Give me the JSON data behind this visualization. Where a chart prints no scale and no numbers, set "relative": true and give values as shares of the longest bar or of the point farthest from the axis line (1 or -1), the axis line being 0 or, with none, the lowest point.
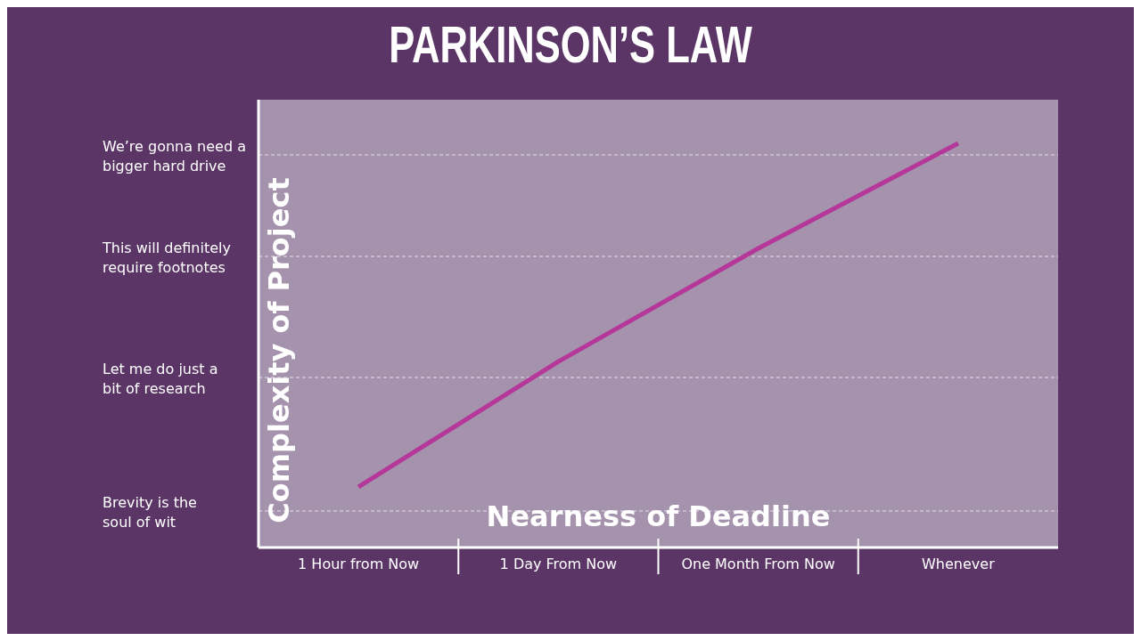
{
  "chart_data": {
    "type": "line",
    "title": "PARKINSON’S LAW",
    "xlabel": "Nearness of Deadline",
    "ylabel": "Complexity of Project",
    "relative": true,
    "categories": [
      "1 Hour from Now",
      "1 Day From Now",
      "One Month From Now",
      "Whenever"
    ],
    "series": [
      {
        "color": "#b5379a",
        "values": [
          0.15,
          0.46,
          0.74,
          1
        ]
      }
    ],
    "annotations": [
      "We’re gonna need a bigger hard drive",
      "This will definitely require footnotes",
      "Let me do just a bit of research",
      "Brevity is the soul of wit"
    ],
    "grid": "y",
    "marker": "none",
    "line_style": "solid",
    "legend": false
  }
}
